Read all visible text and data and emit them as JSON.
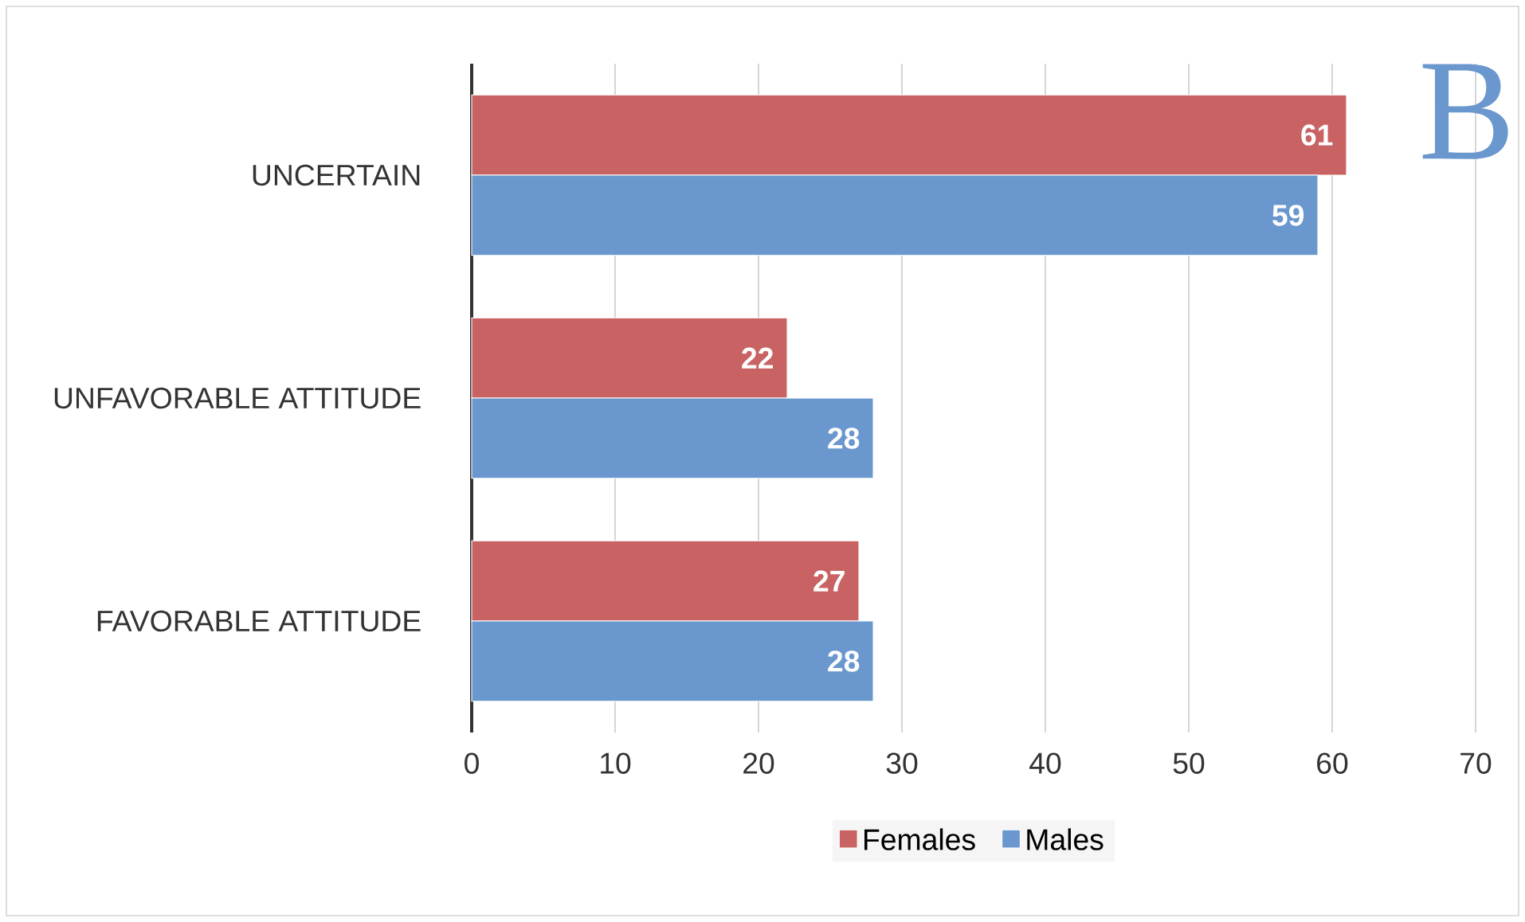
{
  "chart_data": {
    "type": "bar",
    "orientation": "horizontal",
    "categories": [
      "UNCERTAIN",
      "UNFAVORABLE ATTITUDE",
      "FAVORABLE ATTITUDE"
    ],
    "series": [
      {
        "name": "Females",
        "color": "#c96262",
        "values": [
          61,
          22,
          27
        ]
      },
      {
        "name": "Males",
        "color": "#6a97cd",
        "values": [
          59,
          28,
          28
        ]
      }
    ],
    "xlim": [
      0,
      70
    ],
    "xticks": [
      0,
      10,
      20,
      30,
      40,
      50,
      60,
      70
    ],
    "grid": "x",
    "legend": "bottom",
    "data_labels": true,
    "annotations": [
      "B"
    ]
  }
}
